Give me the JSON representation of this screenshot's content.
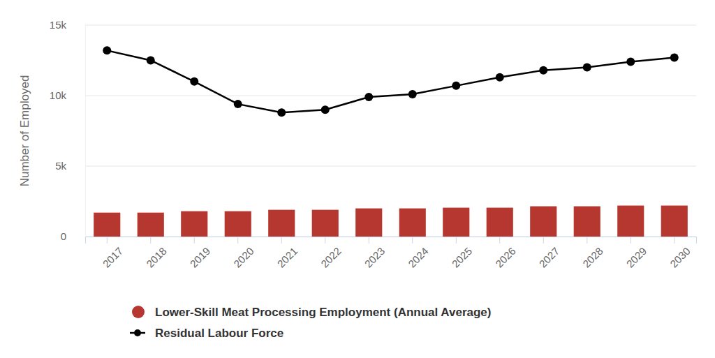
{
  "chart_data": {
    "type": "bar",
    "y_label": "Number of Employed",
    "categories": [
      "2017",
      "2018",
      "2019",
      "2020",
      "2021",
      "2022",
      "2023",
      "2024",
      "2025",
      "2026",
      "2027",
      "2028",
      "2029",
      "2030"
    ],
    "series": [
      {
        "name": "Lower-Skill Meat Processing Employment (Annual Average)",
        "type": "bar",
        "color": "#b5372f",
        "values": [
          1700,
          1700,
          1800,
          1800,
          1900,
          1900,
          2000,
          2000,
          2050,
          2050,
          2150,
          2150,
          2200,
          2200
        ]
      },
      {
        "name": "Residual Labour Force",
        "type": "line",
        "color": "#000000",
        "marker": "circle",
        "values": [
          13200,
          12500,
          11000,
          9400,
          8800,
          9000,
          9900,
          10100,
          10700,
          11300,
          11800,
          12000,
          12400,
          12700
        ]
      }
    ],
    "ylim": [
      0,
      15000
    ],
    "yticks": [
      0,
      {
        "value": 5000,
        "label": "5k"
      },
      {
        "value": 10000,
        "label": "10k"
      },
      {
        "value": 15000,
        "label": "15k"
      }
    ],
    "grid": true,
    "legend": "bottom"
  }
}
